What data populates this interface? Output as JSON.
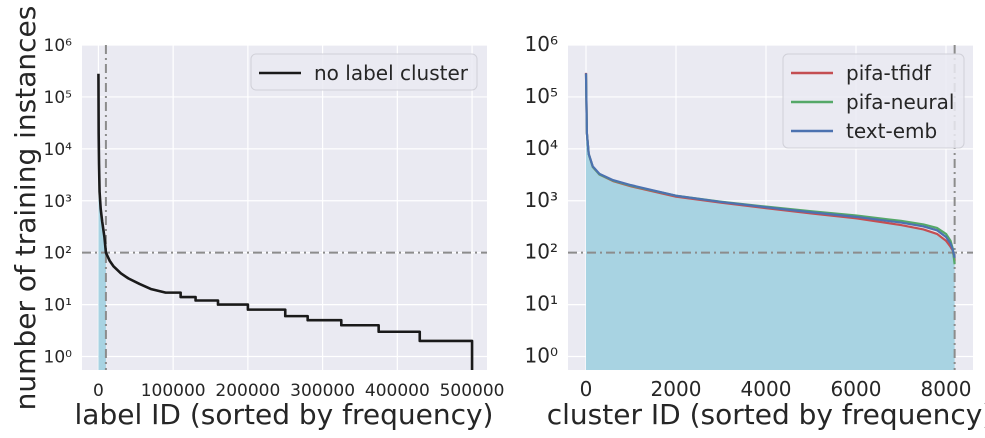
{
  "figure": {
    "ylabel": "number of training instances"
  },
  "chart_data": [
    {
      "type": "line",
      "xlabel": "label ID (sorted by frequency)",
      "ylabel": "number of training instances",
      "xlim": [
        -22000,
        520000
      ],
      "ylim": [
        0.55,
        1000000
      ],
      "yscale": "log",
      "xticks": [
        0,
        100000,
        200000,
        300000,
        400000,
        500000
      ],
      "yticks": [
        1,
        10,
        100,
        1000,
        10000,
        100000,
        1000000
      ],
      "grid": true,
      "legend_position": "top-right",
      "reference_lines": {
        "horizontal": 100,
        "vertical": 10000
      },
      "shaded_region": {
        "x": [
          0,
          10000
        ]
      },
      "series": [
        {
          "name": "no label cluster",
          "color": "#1a1a1a",
          "x": [
            0,
            300,
            800,
            1500,
            3000,
            5000,
            8000,
            10000,
            15000,
            20000,
            30000,
            40000,
            55000,
            70000,
            90000,
            110000,
            130000,
            160000,
            200000,
            250000,
            280000,
            325000,
            375000,
            430000,
            500000
          ],
          "y": [
            280000,
            20000,
            5000,
            1500,
            700,
            400,
            200,
            100,
            70,
            55,
            40,
            32,
            25,
            20,
            17,
            14,
            12,
            10,
            8,
            6,
            5,
            4,
            3,
            2,
            1
          ]
        }
      ]
    },
    {
      "type": "line",
      "xlabel": "cluster ID (sorted by frequency)",
      "xlim": [
        -400,
        8600
      ],
      "ylim": [
        0.55,
        1000000
      ],
      "yscale": "log",
      "xticks": [
        0,
        2000,
        4000,
        6000,
        8000
      ],
      "yticks": [
        1,
        10,
        100,
        1000,
        10000,
        100000,
        1000000
      ],
      "grid": true,
      "legend_position": "top-right",
      "reference_lines": {
        "horizontal": 100,
        "vertical": 8192
      },
      "shaded_region": {
        "x": [
          0,
          8192
        ]
      },
      "series": [
        {
          "name": "pifa-tfidf",
          "color": "#c44e52",
          "x": [
            0,
            20,
            60,
            150,
            300,
            600,
            1000,
            2000,
            3000,
            4000,
            5000,
            6000,
            7000,
            7500,
            7800,
            8000,
            8100,
            8150,
            8192
          ],
          "y": [
            290000,
            20000,
            8000,
            4500,
            3200,
            2400,
            1900,
            1200,
            920,
            720,
            570,
            460,
            340,
            280,
            230,
            170,
            130,
            110,
            70
          ]
        },
        {
          "name": "pifa-neural",
          "color": "#55a868",
          "x": [
            0,
            20,
            60,
            150,
            300,
            600,
            1000,
            2000,
            3000,
            4000,
            5000,
            6000,
            7000,
            7500,
            7800,
            8000,
            8100,
            8150,
            8192
          ],
          "y": [
            280000,
            20000,
            8000,
            4500,
            3200,
            2450,
            1950,
            1250,
            960,
            770,
            630,
            520,
            410,
            350,
            300,
            230,
            170,
            120,
            60
          ]
        },
        {
          "name": "text-emb",
          "color": "#4c72b0",
          "x": [
            0,
            20,
            60,
            150,
            300,
            600,
            1000,
            2000,
            3000,
            4000,
            5000,
            6000,
            7000,
            7500,
            7800,
            8000,
            8100,
            8150,
            8192
          ],
          "y": [
            285000,
            20000,
            8000,
            4600,
            3300,
            2500,
            2000,
            1250,
            950,
            750,
            600,
            490,
            380,
            320,
            270,
            200,
            150,
            115,
            80
          ]
        }
      ]
    }
  ]
}
